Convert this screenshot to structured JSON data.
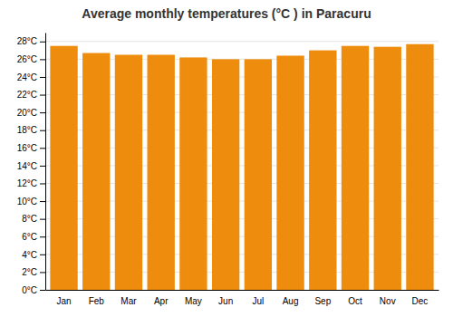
{
  "chart_data": {
    "type": "bar",
    "title": "Average monthly temperatures (°C ) in Paracuru",
    "categories": [
      "Jan",
      "Feb",
      "Mar",
      "Apr",
      "May",
      "Jun",
      "Jul",
      "Aug",
      "Sep",
      "Oct",
      "Nov",
      "Dec"
    ],
    "values": [
      27.5,
      26.7,
      26.5,
      26.5,
      26.2,
      26.0,
      26.0,
      26.4,
      27.0,
      27.5,
      27.4,
      27.7
    ],
    "color": "#ED8C0D",
    "ylim": [
      0,
      29
    ],
    "yticks": [
      {
        "value": 0,
        "label": "0°C"
      },
      {
        "value": 2,
        "label": "2°C"
      },
      {
        "value": 4,
        "label": "4°C"
      },
      {
        "value": 6,
        "label": "6°C"
      },
      {
        "value": 8,
        "label": "8°C"
      },
      {
        "value": 10,
        "label": "10°C"
      },
      {
        "value": 12,
        "label": "12°C"
      },
      {
        "value": 14,
        "label": "14°C"
      },
      {
        "value": 16,
        "label": "16°C"
      },
      {
        "value": 18,
        "label": "18°C"
      },
      {
        "value": 20,
        "label": "20°C"
      },
      {
        "value": 22,
        "label": "22°C"
      },
      {
        "value": 24,
        "label": "24°C"
      },
      {
        "value": 26,
        "label": "26°C"
      },
      {
        "value": 28,
        "label": "28°C"
      }
    ],
    "grid": true
  }
}
